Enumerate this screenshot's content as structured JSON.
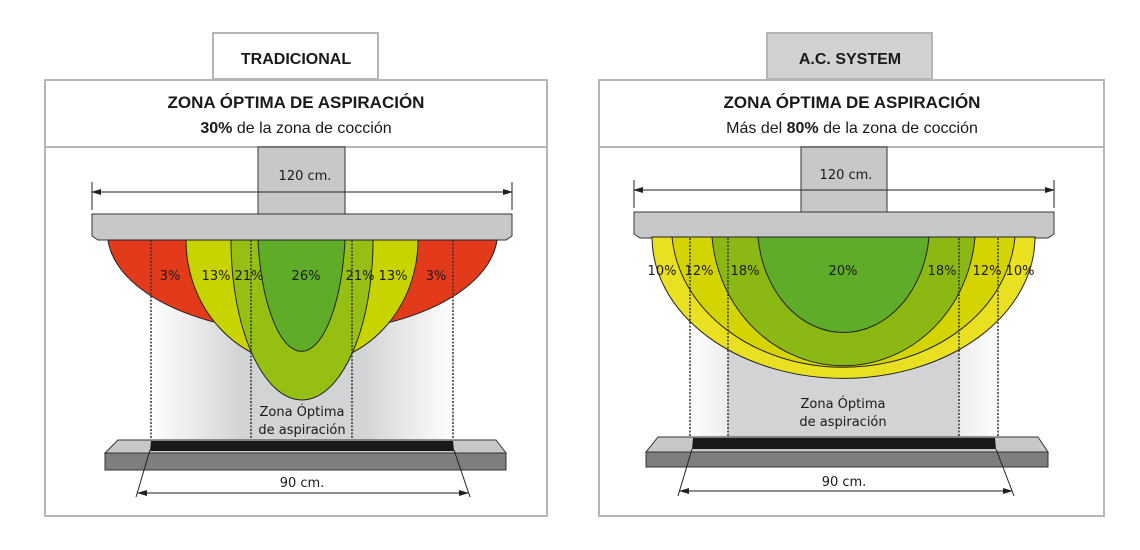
{
  "colors": {
    "red": "#e23a1a",
    "yellow": "#c8d400",
    "light_green": "#96bf14",
    "dark_green": "#5fac28",
    "bright_yellow": "#e8e020",
    "yellow2": "#d4d400",
    "panel_border": "#b5b5b5",
    "hood": "#c7c8ca",
    "active_tab": "#d0d2d3"
  },
  "left": {
    "tab": "TRADICIONAL",
    "title": "ZONA ÓPTIMA DE ASPIRACIÓN",
    "subtitle_bold": "30%",
    "subtitle_rest": " de la zona de cocción",
    "hood_width": "120 cm.",
    "cooktop_width": "90 cm.",
    "zone_label_1": "Zona Óptima",
    "zone_label_2": "de aspiración",
    "percentages": [
      "3%",
      "13%",
      "21%",
      "26%",
      "21%",
      "13%",
      "3%"
    ]
  },
  "right": {
    "tab": "A.C. SYSTEM",
    "title": "ZONA ÓPTIMA DE ASPIRACIÓN",
    "subtitle_pre": "Más del ",
    "subtitle_bold": "80%",
    "subtitle_rest": " de la zona de cocción",
    "hood_width": "120 cm.",
    "cooktop_width": "90 cm.",
    "zone_label_1": "Zona Óptima",
    "zone_label_2": "de aspiración",
    "percentages": [
      "10%",
      "12%",
      "18%",
      "20%",
      "18%",
      "12%",
      "10%"
    ]
  }
}
